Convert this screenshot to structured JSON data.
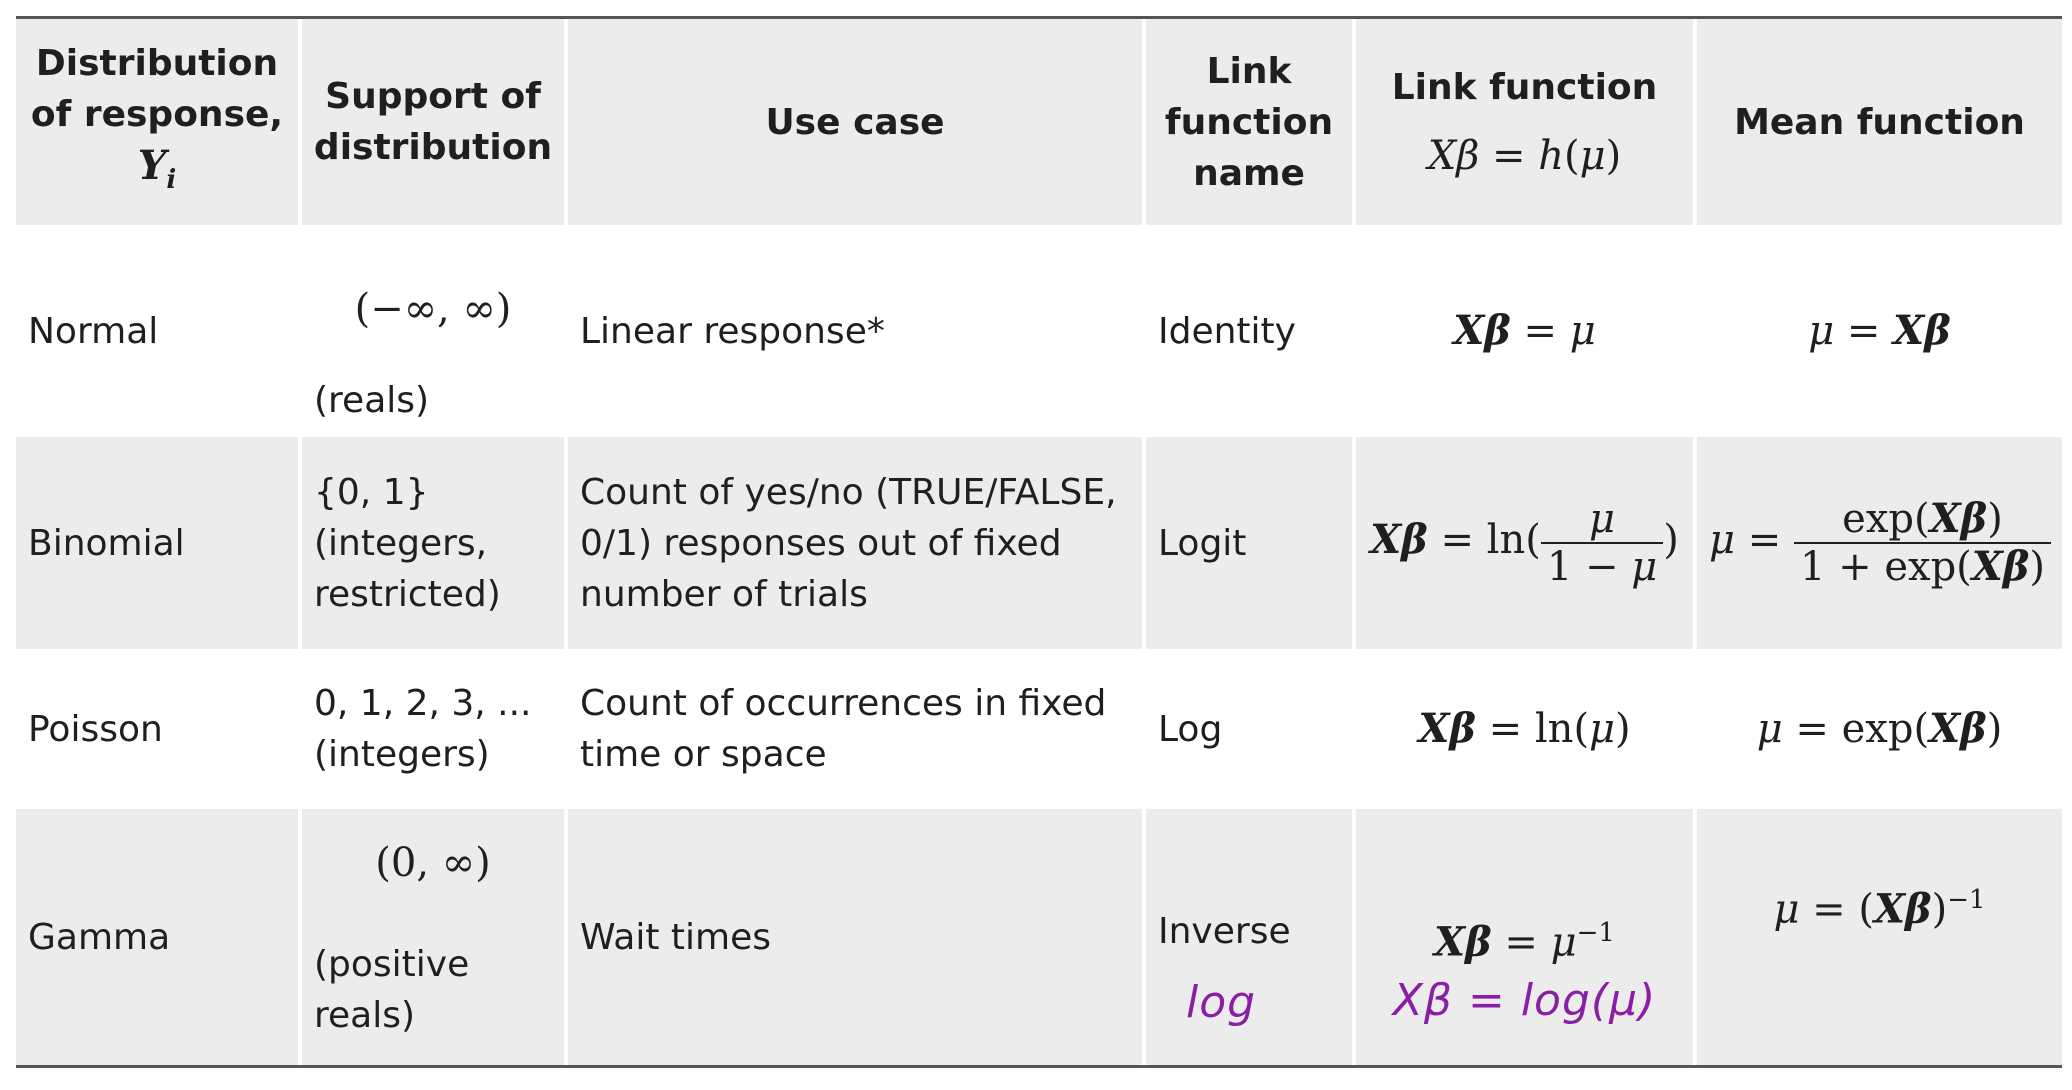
{
  "headers": {
    "distribution": "Distribution of response, ",
    "distribution_symbol": "Yi",
    "support": "Support of distribution",
    "use_case": "Use case",
    "link_name": "Link function name",
    "link_function": "Link function",
    "link_function_formula": "Xβ = h(μ)",
    "mean_function": "Mean function"
  },
  "rows": [
    {
      "distribution": "Normal",
      "support_math": "(−∞, ∞)",
      "support_text": "(reals)",
      "use_case": "Linear response*",
      "link_name": "Identity",
      "link_function": "Xβ = μ",
      "mean_function": "μ = Xβ"
    },
    {
      "distribution": "Binomial",
      "support_text": "{0, 1} (integers, restricted)",
      "use_case": "Count of yes/no (TRUE/FALSE, 0/1) responses out of fixed number of trials",
      "link_name": "Logit",
      "link_function": "Xβ = ln(μ / (1 − μ))",
      "mean_function": "μ = exp(Xβ) / (1 + exp(Xβ))"
    },
    {
      "distribution": "Poisson",
      "support_text": "0, 1, 2, 3, ... (integers)",
      "use_case": "Count of occurrences in fixed time or space",
      "link_name": "Log",
      "link_function": "Xβ = ln(μ)",
      "mean_function": "μ = exp(Xβ)"
    },
    {
      "distribution": "Gamma",
      "support_math": "(0, ∞)",
      "support_text": "(positive reals)",
      "use_case": "Wait times",
      "link_name": "Inverse",
      "link_function": "Xβ = μ^−1",
      "mean_function": "μ = (Xβ)^−1",
      "handwritten_link_name": "log",
      "handwritten_link_function": "Xβ = log(μ)"
    }
  ],
  "colors": {
    "shade": "#ececec",
    "ink": "#1f1f1f",
    "handwriting": "#8a1fa6"
  }
}
